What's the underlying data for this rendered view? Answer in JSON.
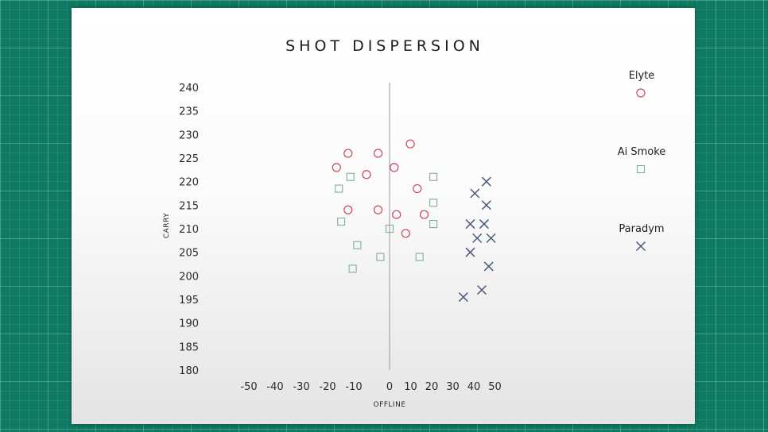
{
  "chart_data": {
    "type": "scatter",
    "title": "SHOT DISPERSION",
    "xlabel": "OFFLINE",
    "ylabel": "CARRY",
    "xlim": [
      -50,
      50
    ],
    "ylim": [
      180,
      240
    ],
    "xticks": [
      -50,
      -40,
      -30,
      -20,
      -10,
      0,
      10,
      20,
      30,
      40,
      50
    ],
    "yticks": [
      240,
      235,
      230,
      225,
      220,
      215,
      210,
      205,
      200,
      195,
      190,
      185,
      180
    ],
    "zero_line": true,
    "legend_position": "right",
    "series": [
      {
        "name": "Elyte",
        "marker": "circle",
        "color": "#c8495a",
        "points": [
          [
            9,
            228
          ],
          [
            -18,
            226
          ],
          [
            -5,
            226
          ],
          [
            -23,
            223
          ],
          [
            2,
            223
          ],
          [
            -10,
            221.5
          ],
          [
            12,
            218.5
          ],
          [
            -18,
            214
          ],
          [
            -5,
            214
          ],
          [
            3,
            213
          ],
          [
            15,
            213
          ],
          [
            7,
            209
          ]
        ]
      },
      {
        "name": "Ai Smoke",
        "marker": "square",
        "color": "#7fae9e",
        "points": [
          [
            -17,
            221
          ],
          [
            19,
            221
          ],
          [
            -22,
            218.5
          ],
          [
            19,
            215.5
          ],
          [
            -21,
            211.5
          ],
          [
            19,
            211
          ],
          [
            0,
            210
          ],
          [
            -14,
            206.5
          ],
          [
            -4,
            204
          ],
          [
            13,
            204
          ],
          [
            -16,
            201.5
          ]
        ]
      },
      {
        "name": "Paradym",
        "marker": "x",
        "color": "#4a5a7a",
        "points": [
          [
            42,
            220
          ],
          [
            37,
            217.5
          ],
          [
            42,
            215
          ],
          [
            35,
            211
          ],
          [
            41,
            211
          ],
          [
            38,
            208
          ],
          [
            44,
            208
          ],
          [
            35,
            205
          ],
          [
            43,
            202
          ],
          [
            40,
            197
          ],
          [
            32,
            195.5
          ]
        ]
      }
    ]
  }
}
